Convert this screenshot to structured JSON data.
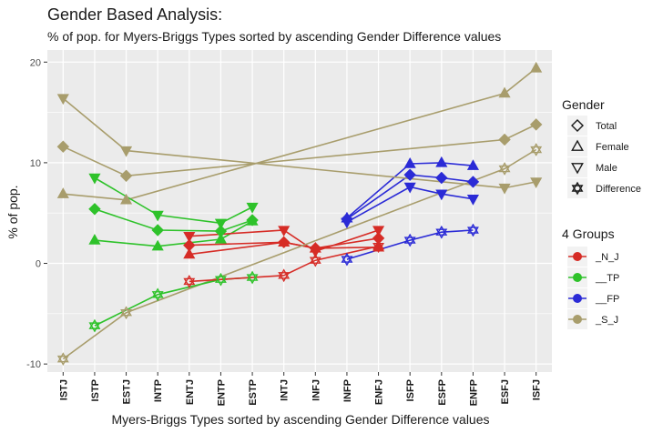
{
  "chart_data": {
    "type": "line",
    "title": "Gender Based Analysis:",
    "subtitle": "% of pop. for Myers-Briggs Types sorted by ascending Gender Difference values",
    "xlabel": "Myers-Briggs Types sorted by ascending Gender Difference values",
    "ylabel": "% of pop.",
    "categories": [
      "ISTJ",
      "ISTP",
      "ESTJ",
      "INTP",
      "ENTJ",
      "ENTP",
      "ESTP",
      "INTJ",
      "INFJ",
      "INFP",
      "ENFJ",
      "ISFP",
      "ESFP",
      "ENFP",
      "ESFJ",
      "ISFJ"
    ],
    "group_of_category": [
      "_S_J",
      "__TP",
      "_S_J",
      "__TP",
      "_N_J",
      "__TP",
      "__TP",
      "_N_J",
      "_N_J",
      "__FP",
      "_N_J",
      "__FP",
      "__FP",
      "__FP",
      "_S_J",
      "_S_J"
    ],
    "yticks": [
      -10,
      0,
      10,
      20
    ],
    "ylim": [
      -10.8,
      21.2
    ],
    "grid": true,
    "measures": [
      {
        "name": "Total",
        "shape": "diamond",
        "values": [
          11.6,
          5.4,
          8.7,
          3.3,
          1.8,
          3.2,
          4.3,
          2.1,
          1.5,
          4.4,
          2.5,
          8.8,
          8.5,
          8.1,
          12.3,
          13.8
        ]
      },
      {
        "name": "Female",
        "shape": "triangle-up",
        "values": [
          6.9,
          2.3,
          6.3,
          1.7,
          0.9,
          2.4,
          4.2,
          2.1,
          1.5,
          4.5,
          1.6,
          9.9,
          10.0,
          9.7,
          16.9,
          19.4
        ]
      },
      {
        "name": "Male",
        "shape": "triangle-down",
        "values": [
          16.4,
          8.5,
          11.2,
          4.8,
          2.7,
          4.0,
          5.6,
          3.3,
          1.2,
          4.1,
          3.3,
          7.6,
          6.9,
          6.4,
          7.5,
          8.1
        ]
      },
      {
        "name": "Difference",
        "shape": "star",
        "values": [
          -9.5,
          -6.2,
          -4.9,
          -3.1,
          -1.8,
          -1.6,
          -1.4,
          -1.2,
          0.3,
          0.4,
          1.7,
          2.3,
          3.1,
          3.3,
          9.4,
          11.3
        ]
      }
    ],
    "legend": {
      "position": "right",
      "gender_title": "Gender",
      "gender_items": [
        {
          "label": "Total",
          "shape": "diamond"
        },
        {
          "label": "Female",
          "shape": "triangle-up"
        },
        {
          "label": "Male",
          "shape": "triangle-down"
        },
        {
          "label": "Difference",
          "shape": "star"
        }
      ],
      "groups_title": "4 Groups",
      "group_items": [
        {
          "label": "_N_J",
          "color": "#d62c26"
        },
        {
          "label": "__TP",
          "color": "#2ec22a"
        },
        {
          "label": "__FP",
          "color": "#2b2bd6"
        },
        {
          "label": "_S_J",
          "color": "#a89d6c"
        }
      ]
    },
    "colors": {
      "_N_J": "#d62c26",
      "__TP": "#2ec22a",
      "__FP": "#2b2bd6",
      "_S_J": "#a89d6c",
      "panel": "#ebebeb",
      "grid": "#ffffff"
    }
  }
}
